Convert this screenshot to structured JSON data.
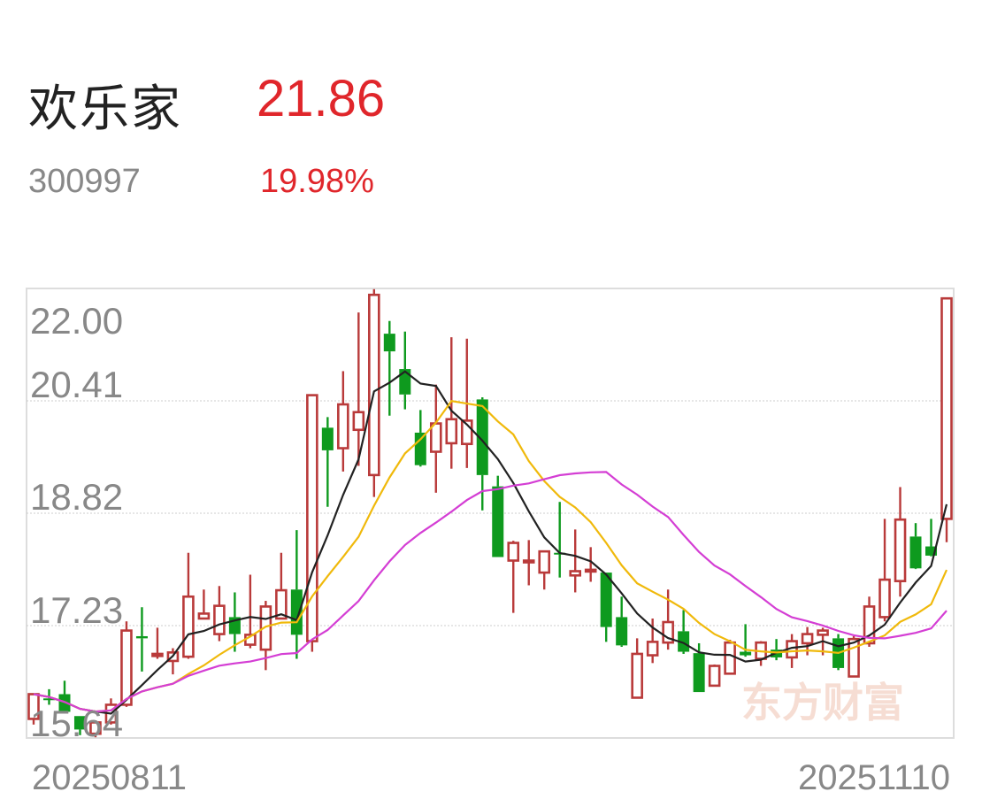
{
  "header": {
    "name": "欢乐家",
    "price": "21.86",
    "code": "300997",
    "change_pct": "19.98%"
  },
  "watermark": "东方财富",
  "colors": {
    "up": "#b93a3a",
    "down": "#0e9a1e",
    "ma5": "#222222",
    "ma10": "#f0b90b",
    "ma20": "#d43ed4",
    "price": "#e0262b"
  },
  "chart_data": {
    "type": "candlestick",
    "ylim": [
      15.64,
      22.0
    ],
    "y_ticks": [
      "22.00",
      "20.41",
      "18.82",
      "17.23",
      "15.64"
    ],
    "x_tick_labels": [
      "20250811",
      "20251110"
    ],
    "grid": true,
    "moving_averages": [
      5,
      10,
      20
    ],
    "candles": [
      [
        15.91,
        16.26,
        16.26,
        15.83
      ],
      [
        16.2,
        16.18,
        16.33,
        16.11
      ],
      [
        16.26,
        16.01,
        16.45,
        16.01
      ],
      [
        15.95,
        15.76,
        15.95,
        15.68
      ],
      [
        15.7,
        15.86,
        15.89,
        15.65
      ],
      [
        15.86,
        16.11,
        16.2,
        15.83
      ],
      [
        16.11,
        17.16,
        17.29,
        16.08
      ],
      [
        17.08,
        17.05,
        17.49,
        16.58
      ],
      [
        16.8,
        16.83,
        17.2,
        16.76
      ],
      [
        16.73,
        16.85,
        16.91,
        16.54
      ],
      [
        16.79,
        17.64,
        18.26,
        16.76
      ],
      [
        17.33,
        17.4,
        17.74,
        17.33
      ],
      [
        17.11,
        17.51,
        17.79,
        17.01
      ],
      [
        17.35,
        17.11,
        17.7,
        16.86
      ],
      [
        16.96,
        17.1,
        17.95,
        16.91
      ],
      [
        16.89,
        17.5,
        17.58,
        16.6
      ],
      [
        17.33,
        17.73,
        18.26,
        17.33
      ],
      [
        17.74,
        17.1,
        18.58,
        16.76
      ],
      [
        17.01,
        20.49,
        20.49,
        16.86
      ],
      [
        20.03,
        19.71,
        20.18,
        18.91
      ],
      [
        19.74,
        20.36,
        20.83,
        19.41
      ],
      [
        20.0,
        20.25,
        21.66,
        19.49
      ],
      [
        19.36,
        21.91,
        21.99,
        19.05
      ],
      [
        21.36,
        21.11,
        21.54,
        20.2
      ],
      [
        20.86,
        20.5,
        21.39,
        20.29
      ],
      [
        19.96,
        19.5,
        20.28,
        19.48
      ],
      [
        19.69,
        20.09,
        20.64,
        19.11
      ],
      [
        19.81,
        20.15,
        21.31,
        19.45
      ],
      [
        19.8,
        20.13,
        21.29,
        19.46
      ],
      [
        20.43,
        19.36,
        20.46,
        18.86
      ],
      [
        19.2,
        18.2,
        19.35,
        18.2
      ],
      [
        18.15,
        18.4,
        18.43,
        17.41
      ],
      [
        18.14,
        18.15,
        18.44,
        17.8
      ],
      [
        17.98,
        18.28,
        18.28,
        17.74
      ],
      [
        18.26,
        18.25,
        18.98,
        17.91
      ],
      [
        17.94,
        18.0,
        18.59,
        17.7
      ],
      [
        18.01,
        18.02,
        18.34,
        17.85
      ],
      [
        17.98,
        17.21,
        17.98,
        17.0
      ],
      [
        17.35,
        16.95,
        17.64,
        16.93
      ],
      [
        16.21,
        16.83,
        17.05,
        16.21
      ],
      [
        16.81,
        17.0,
        17.33,
        16.7
      ],
      [
        16.99,
        17.28,
        17.74,
        16.89
      ],
      [
        17.15,
        16.86,
        17.45,
        16.83
      ],
      [
        16.84,
        16.29,
        16.98,
        16.29
      ],
      [
        16.38,
        16.66,
        16.68,
        16.38
      ],
      [
        16.55,
        16.99,
        17.03,
        16.55
      ],
      [
        16.86,
        16.81,
        17.25,
        16.79
      ],
      [
        16.76,
        16.99,
        17.01,
        16.66
      ],
      [
        16.89,
        16.78,
        17.04,
        16.74
      ],
      [
        16.78,
        17.01,
        17.11,
        16.63
      ],
      [
        16.98,
        17.11,
        17.21,
        16.81
      ],
      [
        17.1,
        17.16,
        17.2,
        16.81
      ],
      [
        17.05,
        16.63,
        17.11,
        16.6
      ],
      [
        16.51,
        17.04,
        17.08,
        16.51
      ],
      [
        16.98,
        17.5,
        17.64,
        16.93
      ],
      [
        17.35,
        17.88,
        18.74,
        17.29
      ],
      [
        17.86,
        18.73,
        19.19,
        17.64
      ],
      [
        18.49,
        18.04,
        18.68,
        18.03
      ],
      [
        18.35,
        18.22,
        18.74,
        18.21
      ],
      [
        18.74,
        21.86,
        21.86,
        18.41
      ]
    ]
  }
}
